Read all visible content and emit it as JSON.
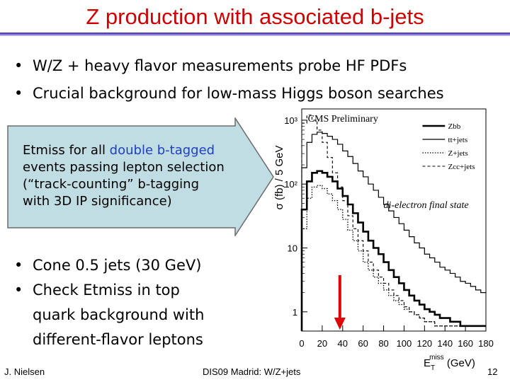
{
  "slide": {
    "title": "Z production with associated b-jets",
    "bullets_top": [
      "W/Z + heavy flavor measurements probe HF PDFs",
      "Crucial background for low-mass Higgs boson searches"
    ],
    "callout": {
      "line1_prefix": "Etmiss for all ",
      "line1_highlight": "double b-tagged",
      "line2": "events passing lepton selection",
      "line3": "(“track-counting” b-tagging",
      "line4": "with 3D IP significance)",
      "fill_color": "#bfdde3",
      "border_color": "#6b6b6b"
    },
    "bullets_bottom": [
      {
        "lines": [
          "Cone 0.5 jets (30 GeV)"
        ]
      },
      {
        "lines": [
          "Check Etmiss in top",
          "quark background with",
          "different-flavor leptons"
        ]
      }
    ],
    "footer": {
      "left": "J. Nielsen",
      "center": "DIS09 Madrid: W/Z+jets",
      "right": "12"
    },
    "bullet_char": "•",
    "title_color": "#cc0000",
    "highlight_color": "#1f3fbf",
    "arrow_color": "#e00000"
  },
  "chart_data": {
    "type": "line",
    "title": "CMS Preliminary",
    "annotation": "di-electron final state",
    "ylabel": "σ (fb) / 5 GeV",
    "xlabel": "E_T^miss (GeV)",
    "xlabel_main": "E",
    "xlabel_sub": "T",
    "xlabel_sup": "miss",
    "xlabel_unit": "(GeV)",
    "x_ticks": [
      "0",
      "20",
      "40",
      "60",
      "80",
      "100",
      "120",
      "140",
      "160",
      "180"
    ],
    "y_ticks": [
      "1",
      "10",
      "10²",
      "10³"
    ],
    "y_scale": "log",
    "xlim": [
      0,
      180
    ],
    "ylim": [
      0.5,
      1500
    ],
    "legend_position": "top-right",
    "legend": [
      "Zbb",
      "tt+jets",
      "Z+jets",
      "Zcc+jets"
    ],
    "x": [
      0,
      5,
      10,
      15,
      20,
      25,
      30,
      35,
      40,
      45,
      50,
      55,
      60,
      65,
      70,
      75,
      80,
      85,
      90,
      95,
      100,
      105,
      110,
      115,
      120,
      125,
      130,
      135,
      140,
      145,
      150,
      155,
      160,
      165,
      170,
      175
    ],
    "series": [
      {
        "name": "Zbb",
        "style": "solid-thick",
        "values": [
          40,
          110,
          150,
          160,
          150,
          130,
          110,
          85,
          65,
          48,
          35,
          25,
          18,
          13,
          10,
          8,
          6,
          4.5,
          3.5,
          2.8,
          2.2,
          1.8,
          1.5,
          1.3,
          1.1,
          1,
          0.9,
          0.8,
          0.8,
          0.7,
          0.7,
          0.6,
          0.6,
          0.6,
          0.6,
          0.6
        ]
      },
      {
        "name": "tt+jets",
        "style": "solid",
        "values": [
          180,
          450,
          600,
          650,
          620,
          560,
          500,
          420,
          330,
          270,
          210,
          160,
          130,
          100,
          80,
          62,
          48,
          38,
          30,
          24,
          19,
          15,
          12,
          10,
          8,
          7,
          6,
          5,
          4.5,
          4,
          3.5,
          3,
          2.8,
          2.5,
          2.2,
          2
        ]
      },
      {
        "name": "Z+jets",
        "style": "dotted",
        "values": [
          20,
          60,
          90,
          95,
          85,
          70,
          55,
          40,
          28,
          19,
          13,
          9,
          6,
          4.5,
          3.5,
          2.8,
          2.2,
          1.8,
          1.5,
          1.3,
          1.1,
          1,
          0.9,
          0.8,
          0.7,
          0.7,
          0.6,
          0.6,
          0.6,
          0.6,
          0.6,
          0.6,
          0.6,
          0.6,
          0.6,
          0.6
        ]
      },
      {
        "name": "Zcc+jets",
        "style": "dashed",
        "values": [
          900,
          1200,
          1000,
          700,
          450,
          260,
          150,
          90,
          55,
          32,
          20,
          13,
          9,
          6,
          4.5,
          3.5,
          2.8,
          2.2,
          1.8,
          1.5,
          1.2,
          1,
          0.9,
          0.8,
          0.7,
          0.7,
          0.6,
          0.6,
          0.6,
          0.6,
          0.6,
          0.6,
          0.6,
          0.6,
          0.6,
          0.6
        ]
      }
    ],
    "arrow_at_x": 40
  }
}
